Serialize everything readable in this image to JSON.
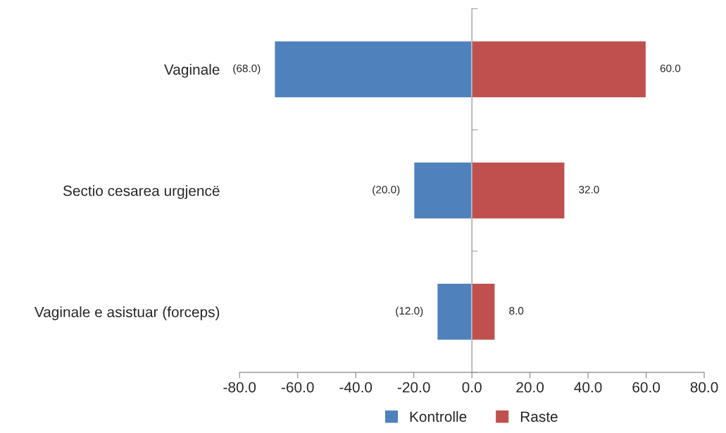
{
  "chart_data": {
    "type": "bar",
    "orientation": "horizontal",
    "categories": [
      "Vaginale",
      "Sectio cesarea urgjencë",
      "Vaginale e asistuar (forceps)"
    ],
    "series": [
      {
        "name": "Kontrolle",
        "color": "#4f81bd",
        "values": [
          -68.0,
          -20.0,
          -12.0
        ],
        "value_labels": [
          "(68.0)",
          "(20.0)",
          "(12.0)"
        ]
      },
      {
        "name": "Raste",
        "color": "#c0504d",
        "values": [
          60.0,
          32.0,
          8.0
        ],
        "value_labels": [
          "60.0",
          "32.0",
          "8.0"
        ]
      }
    ],
    "xlim": [
      -80,
      80
    ],
    "xticks": [
      {
        "value": -80,
        "label": "-80.0"
      },
      {
        "value": -60,
        "label": "-60.0"
      },
      {
        "value": -40,
        "label": "-40.0"
      },
      {
        "value": -20,
        "label": "-20.0"
      },
      {
        "value": 0,
        "label": "0.0"
      },
      {
        "value": 20,
        "label": "20.0"
      },
      {
        "value": 40,
        "label": "40.0"
      },
      {
        "value": 60,
        "label": "60.0"
      },
      {
        "value": 80,
        "label": "80.0"
      }
    ],
    "stacked": true,
    "legend": "bottom"
  }
}
